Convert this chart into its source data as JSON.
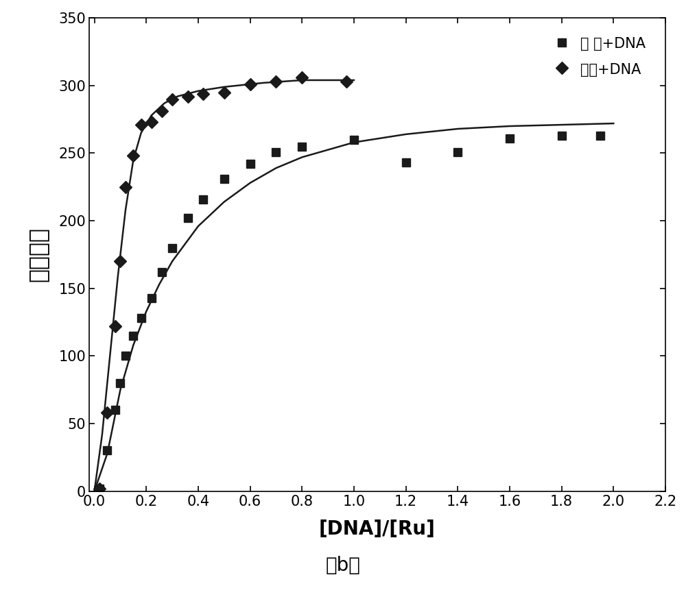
{
  "title": "",
  "subtitle": "（b）",
  "xlabel": "[DNA]/[Ru]",
  "ylabel": "荧光强度",
  "xlim": [
    -0.02,
    2.2
  ],
  "ylim": [
    0,
    350
  ],
  "xticks": [
    0.0,
    0.2,
    0.4,
    0.6,
    0.8,
    1.0,
    1.2,
    1.4,
    1.6,
    1.8,
    2.0,
    2.2
  ],
  "yticks": [
    0,
    50,
    100,
    150,
    200,
    250,
    300,
    350
  ],
  "right_x": [
    0.02,
    0.05,
    0.08,
    0.1,
    0.12,
    0.15,
    0.18,
    0.22,
    0.26,
    0.3,
    0.36,
    0.42,
    0.5,
    0.6,
    0.7,
    0.8,
    1.0,
    1.2,
    1.4,
    1.6,
    1.8,
    1.95
  ],
  "right_y": [
    2,
    30,
    60,
    80,
    100,
    115,
    128,
    143,
    162,
    180,
    202,
    216,
    231,
    242,
    251,
    255,
    260,
    243,
    251,
    261,
    263,
    263
  ],
  "left_x": [
    0.02,
    0.05,
    0.08,
    0.1,
    0.12,
    0.15,
    0.18,
    0.22,
    0.26,
    0.3,
    0.36,
    0.42,
    0.5,
    0.6,
    0.7,
    0.8,
    0.97
  ],
  "left_y": [
    2,
    58,
    122,
    170,
    225,
    248,
    271,
    273,
    281,
    290,
    292,
    294,
    295,
    301,
    303,
    306,
    303
  ],
  "color": "#1a1a1a",
  "marker_square": "s",
  "marker_diamond": "D",
  "markersize_square": 8,
  "markersize_diamond": 9,
  "linewidth": 1.8,
  "legend_right": "右 旋+DNA",
  "legend_left": "左旋+DNA",
  "ylabel_fontsize": 24,
  "xlabel_fontsize": 20,
  "tick_fontsize": 15,
  "legend_fontsize": 15,
  "subtitle_fontsize": 20,
  "figsize": [
    10.0,
    8.74
  ],
  "dpi": 100,
  "right_curve_x": [
    0.0,
    0.05,
    0.1,
    0.15,
    0.2,
    0.25,
    0.3,
    0.4,
    0.5,
    0.6,
    0.7,
    0.8,
    1.0,
    1.2,
    1.4,
    1.6,
    1.8,
    2.0
  ],
  "right_curve_y": [
    0,
    28,
    75,
    108,
    133,
    153,
    170,
    196,
    214,
    228,
    239,
    247,
    258,
    264,
    268,
    270,
    271,
    272
  ],
  "left_curve_x": [
    0.0,
    0.03,
    0.06,
    0.09,
    0.12,
    0.15,
    0.18,
    0.22,
    0.27,
    0.32,
    0.4,
    0.5,
    0.65,
    0.8,
    1.0
  ],
  "left_curve_y": [
    0,
    42,
    100,
    158,
    208,
    245,
    265,
    278,
    287,
    292,
    296,
    299,
    302,
    304,
    304
  ]
}
